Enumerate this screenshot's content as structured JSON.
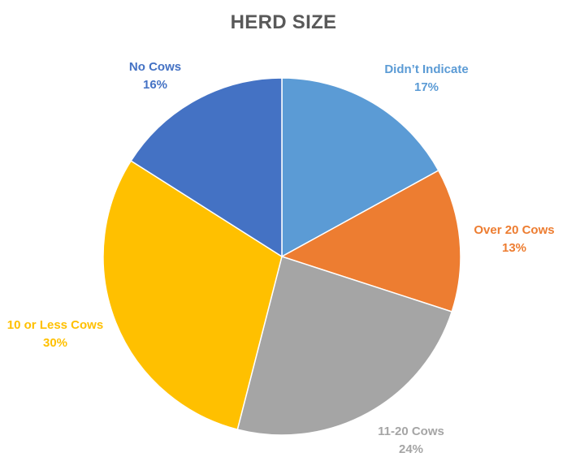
{
  "chart_data": {
    "type": "pie",
    "title": "HERD SIZE",
    "labels": [
      "Didn’t Indicate",
      "Over 20 Cows",
      "11-20 Cows",
      "10 or Less Cows",
      "No Cows"
    ],
    "values": [
      17,
      13,
      24,
      30,
      16
    ],
    "value_labels": [
      "17%",
      "13%",
      "24%",
      "30%",
      "16%"
    ],
    "colors": [
      "#5B9BD5",
      "#ED7D31",
      "#A5A5A5",
      "#FFC000",
      "#4472C4"
    ],
    "legend": "none",
    "data_labels": "outside"
  }
}
